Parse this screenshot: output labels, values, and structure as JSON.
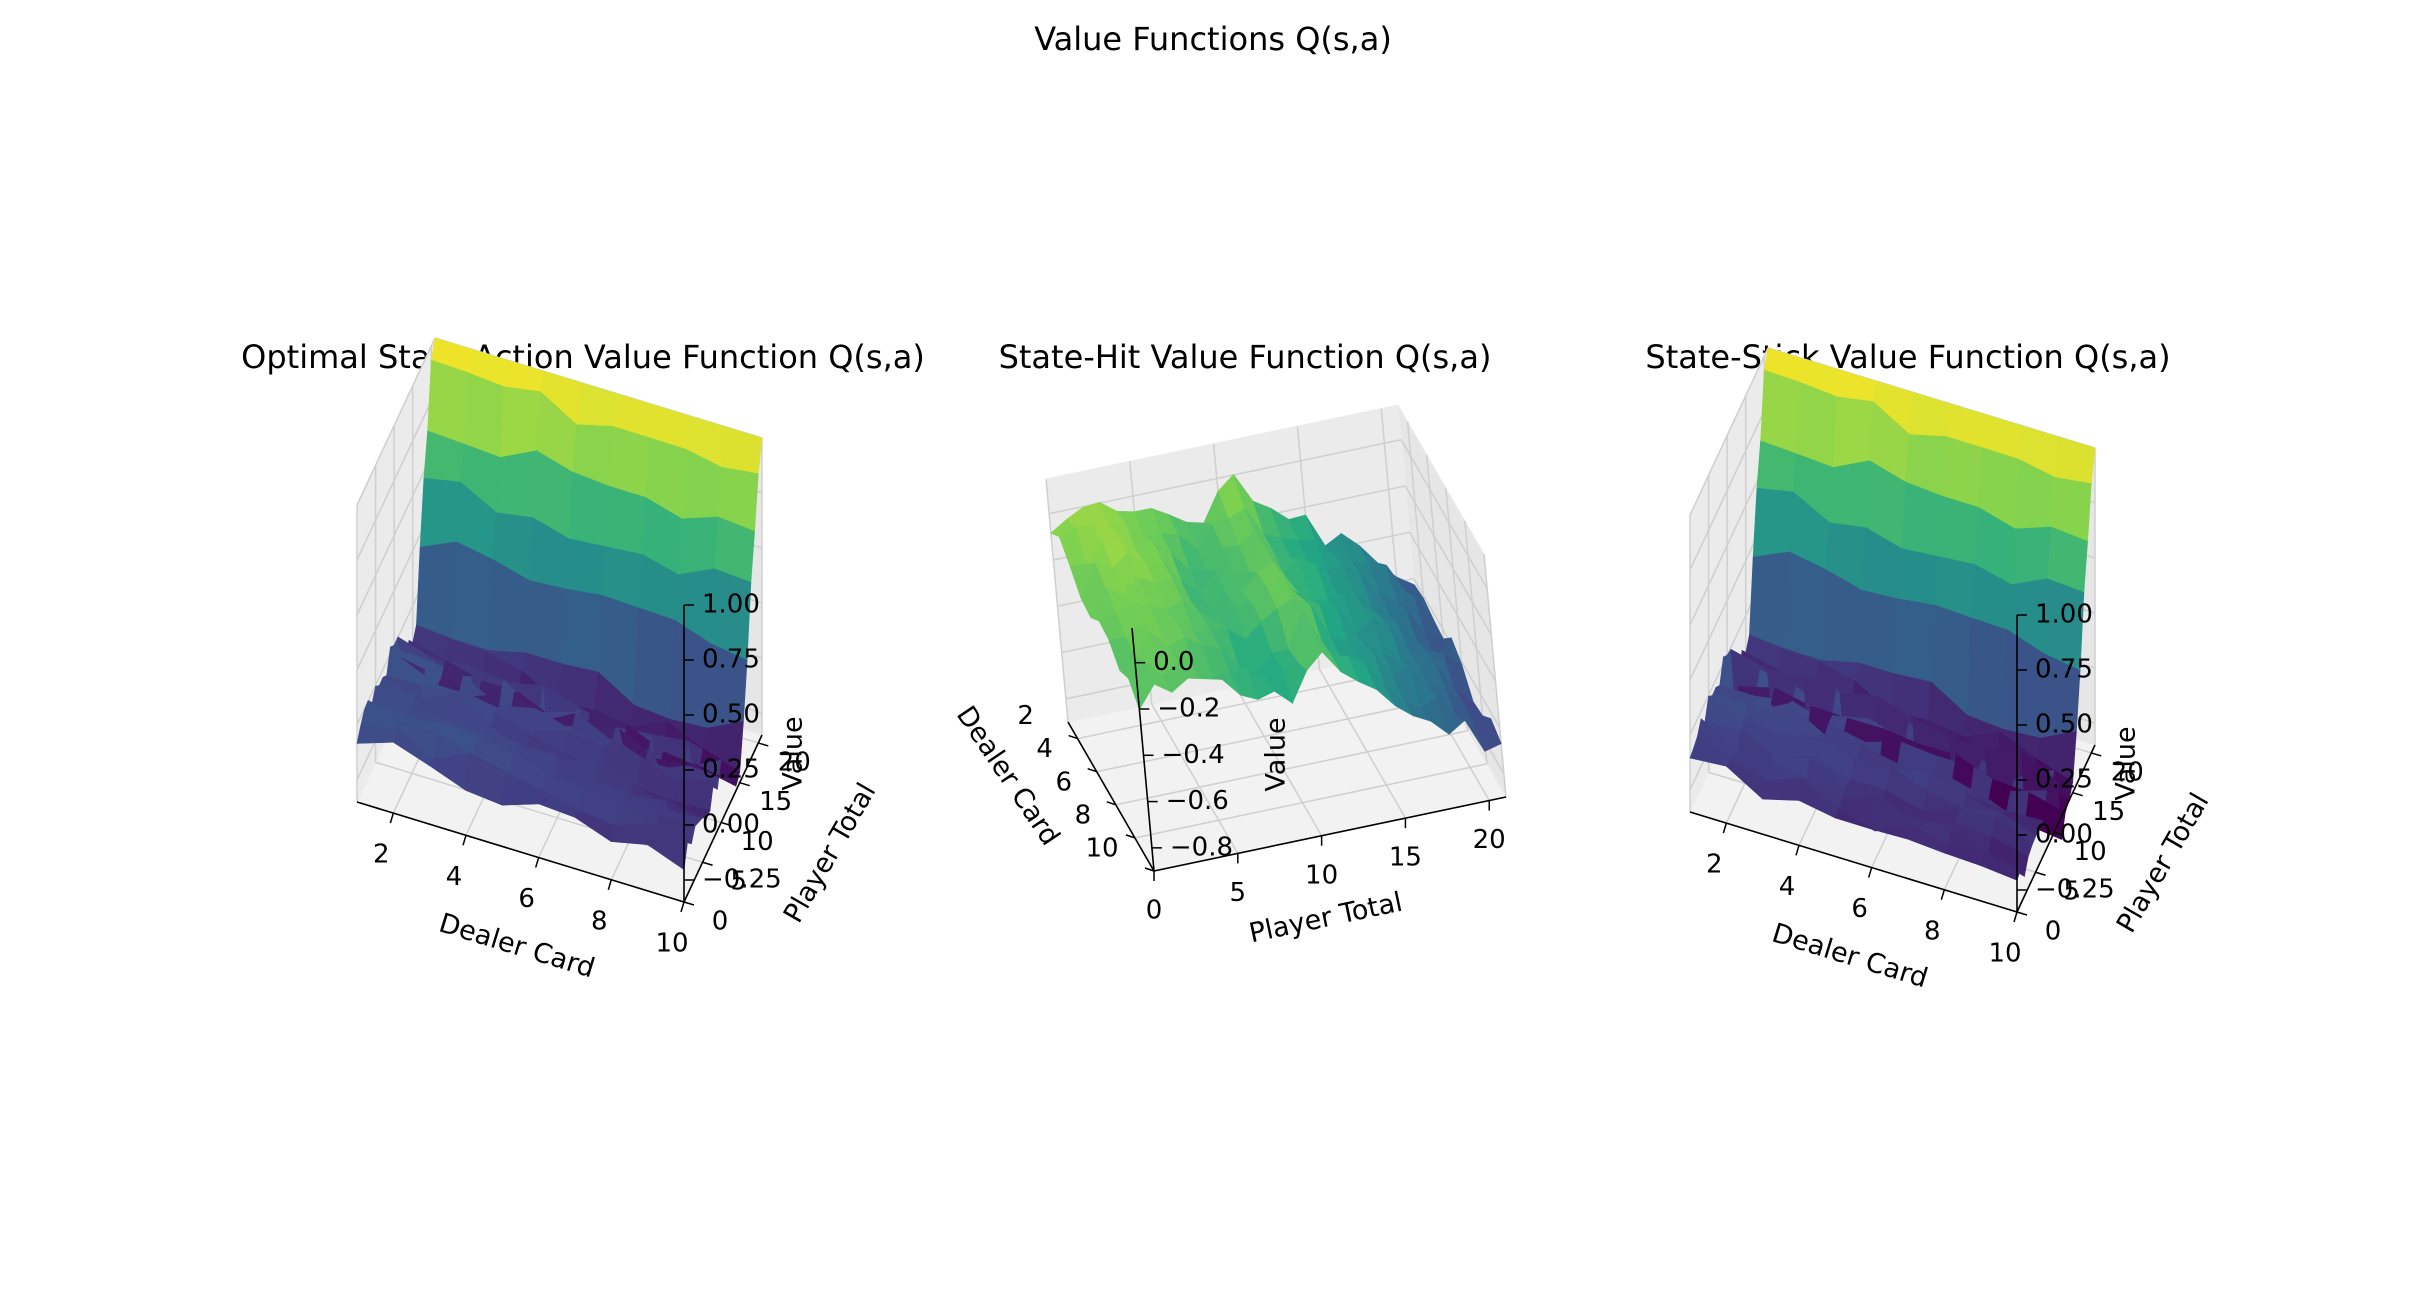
{
  "figure": {
    "title": "Value Functions Q(s,a)",
    "colormap": [
      "#440154",
      "#414487",
      "#2a788e",
      "#22a884",
      "#7ad151",
      "#fde725"
    ]
  },
  "chart_data": [
    {
      "type": "surface3d",
      "title": "Optimal State-Action Value Function Q(s,a)",
      "xlabel": "Dealer Card",
      "ylabel": "Player Total",
      "zlabel": "Value",
      "x_ticks": [
        2,
        4,
        6,
        8,
        10
      ],
      "y_ticks": [
        0,
        5,
        10,
        15,
        20
      ],
      "z_ticks": [
        "−0.25",
        "0.00",
        "0.25",
        "0.50",
        "0.75",
        "1.00"
      ],
      "x_range": [
        1,
        10
      ],
      "y_range": [
        0,
        21
      ],
      "z_range": [
        -0.35,
        1.0
      ],
      "surface": "max(Q_hit, Q_stick)",
      "view": "elev 30, azim -60"
    },
    {
      "type": "surface3d",
      "title": "State-Hit Value Function Q(s,a)",
      "xlabel": "Dealer Card",
      "ylabel": "Player Total",
      "zlabel": "Value",
      "x_ticks": [
        2,
        4,
        6,
        8,
        10
      ],
      "y_ticks": [
        0,
        5,
        10,
        15,
        20
      ],
      "z_ticks": [
        "0.0",
        "−0.2",
        "−0.4",
        "−0.6",
        "−0.8"
      ],
      "x_range": [
        1,
        10
      ],
      "y_range": [
        0,
        21
      ],
      "z_range": [
        -0.9,
        0.15
      ],
      "surface": "Q_hit",
      "view": "elev 20, azim -20"
    },
    {
      "type": "surface3d",
      "title": "State-Stick Value Function Q(s,a)",
      "xlabel": "Dealer Card",
      "ylabel": "Player Total",
      "zlabel": "Value",
      "x_ticks": [
        2,
        4,
        6,
        8,
        10
      ],
      "y_ticks": [
        0,
        5,
        10,
        15,
        20
      ],
      "z_ticks": [
        "−0.25",
        "0.00",
        "0.25",
        "0.50",
        "0.75",
        "1.00"
      ],
      "x_range": [
        1,
        10
      ],
      "y_range": [
        0,
        21
      ],
      "z_range": [
        -0.35,
        1.0
      ],
      "surface": "Q_stick",
      "view": "elev 30, azim -60"
    }
  ]
}
